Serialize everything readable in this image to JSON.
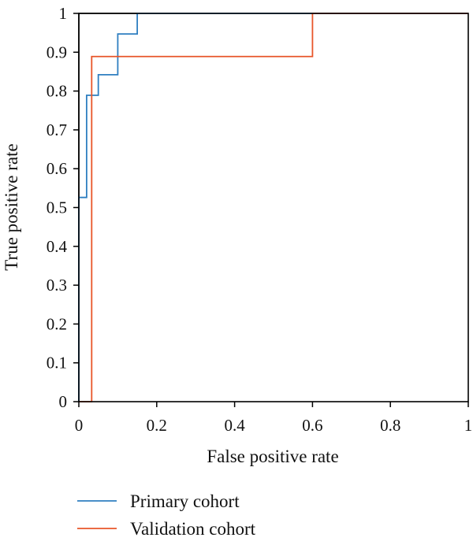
{
  "chart_data": {
    "type": "line",
    "title": "",
    "xlabel": "False positive rate",
    "ylabel": "True positive rate",
    "xlim": [
      0,
      1
    ],
    "ylim": [
      0,
      1
    ],
    "x_ticks": [
      "0",
      "0.2",
      "0.4",
      "0.6",
      "0.8",
      "1"
    ],
    "y_ticks": [
      "0",
      "0.1",
      "0.2",
      "0.3",
      "0.4",
      "0.5",
      "0.6",
      "0.7",
      "0.8",
      "0.9",
      "1"
    ],
    "grid": false,
    "legend_position": "bottom",
    "series": [
      {
        "name": "Primary cohort",
        "color": "#2f7fc1",
        "x": [
          0,
          0,
          0.02,
          0.02,
          0.05,
          0.05,
          0.1,
          0.1,
          0.15,
          0.15,
          1
        ],
        "y": [
          0,
          0.526,
          0.526,
          0.789,
          0.789,
          0.842,
          0.842,
          0.947,
          0.947,
          1,
          1
        ]
      },
      {
        "name": "Validation cohort",
        "color": "#e8562a",
        "x": [
          0,
          0.033,
          0.033,
          0.033,
          0.6,
          0.6,
          1
        ],
        "y": [
          0,
          0,
          0.375,
          0.889,
          0.889,
          1,
          1
        ]
      }
    ],
    "diagonal_color": "#000000"
  }
}
